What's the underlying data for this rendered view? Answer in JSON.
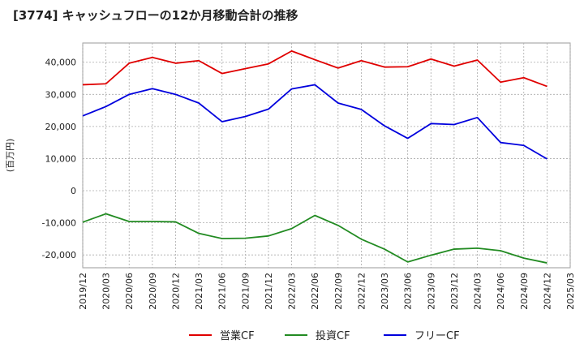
{
  "chart_data": {
    "type": "line",
    "title": "[3774]  キャッシュフローの12か月移動合計の推移",
    "ylabel": "(百万円)",
    "xlabel": "",
    "ylim": [
      -24000,
      46000
    ],
    "yticks": [
      40000,
      30000,
      20000,
      10000,
      0,
      -10000,
      -20000
    ],
    "ytick_labels": [
      "40,000",
      "30,000",
      "20,000",
      "10,000",
      "0",
      "-10,000",
      "-20,000"
    ],
    "x": [
      "2019/12",
      "2020/03",
      "2020/06",
      "2020/09",
      "2020/12",
      "2021/03",
      "2021/06",
      "2021/09",
      "2021/12",
      "2022/03",
      "2022/06",
      "2022/09",
      "2022/12",
      "2023/03",
      "2023/06",
      "2023/09",
      "2023/12",
      "2024/03",
      "2024/06",
      "2024/09",
      "2024/12",
      "2025/03"
    ],
    "grid": true,
    "legend": "bottom",
    "series": [
      {
        "name": "営業CF",
        "color": "#e00000",
        "values": [
          33000,
          33300,
          39700,
          41500,
          39700,
          40500,
          36500,
          38000,
          39500,
          43500,
          40800,
          38200,
          40500,
          38500,
          38600,
          41000,
          38800,
          40700,
          33800,
          35200,
          32500,
          null
        ]
      },
      {
        "name": "投資CF",
        "color": "#228b22",
        "values": [
          -9800,
          -7200,
          -9600,
          -9600,
          -9700,
          -13300,
          -14900,
          -14800,
          -14100,
          -11800,
          -7700,
          -10800,
          -15100,
          -18200,
          -22200,
          -20100,
          -18200,
          -17900,
          -18700,
          -21000,
          -22500,
          null
        ]
      },
      {
        "name": "フリーCF",
        "color": "#0000dd",
        "values": [
          23300,
          26200,
          30000,
          31800,
          30000,
          27300,
          21500,
          23100,
          25400,
          31700,
          33000,
          27300,
          25300,
          20200,
          16300,
          20900,
          20600,
          22800,
          15000,
          14100,
          9900,
          null
        ]
      }
    ]
  }
}
